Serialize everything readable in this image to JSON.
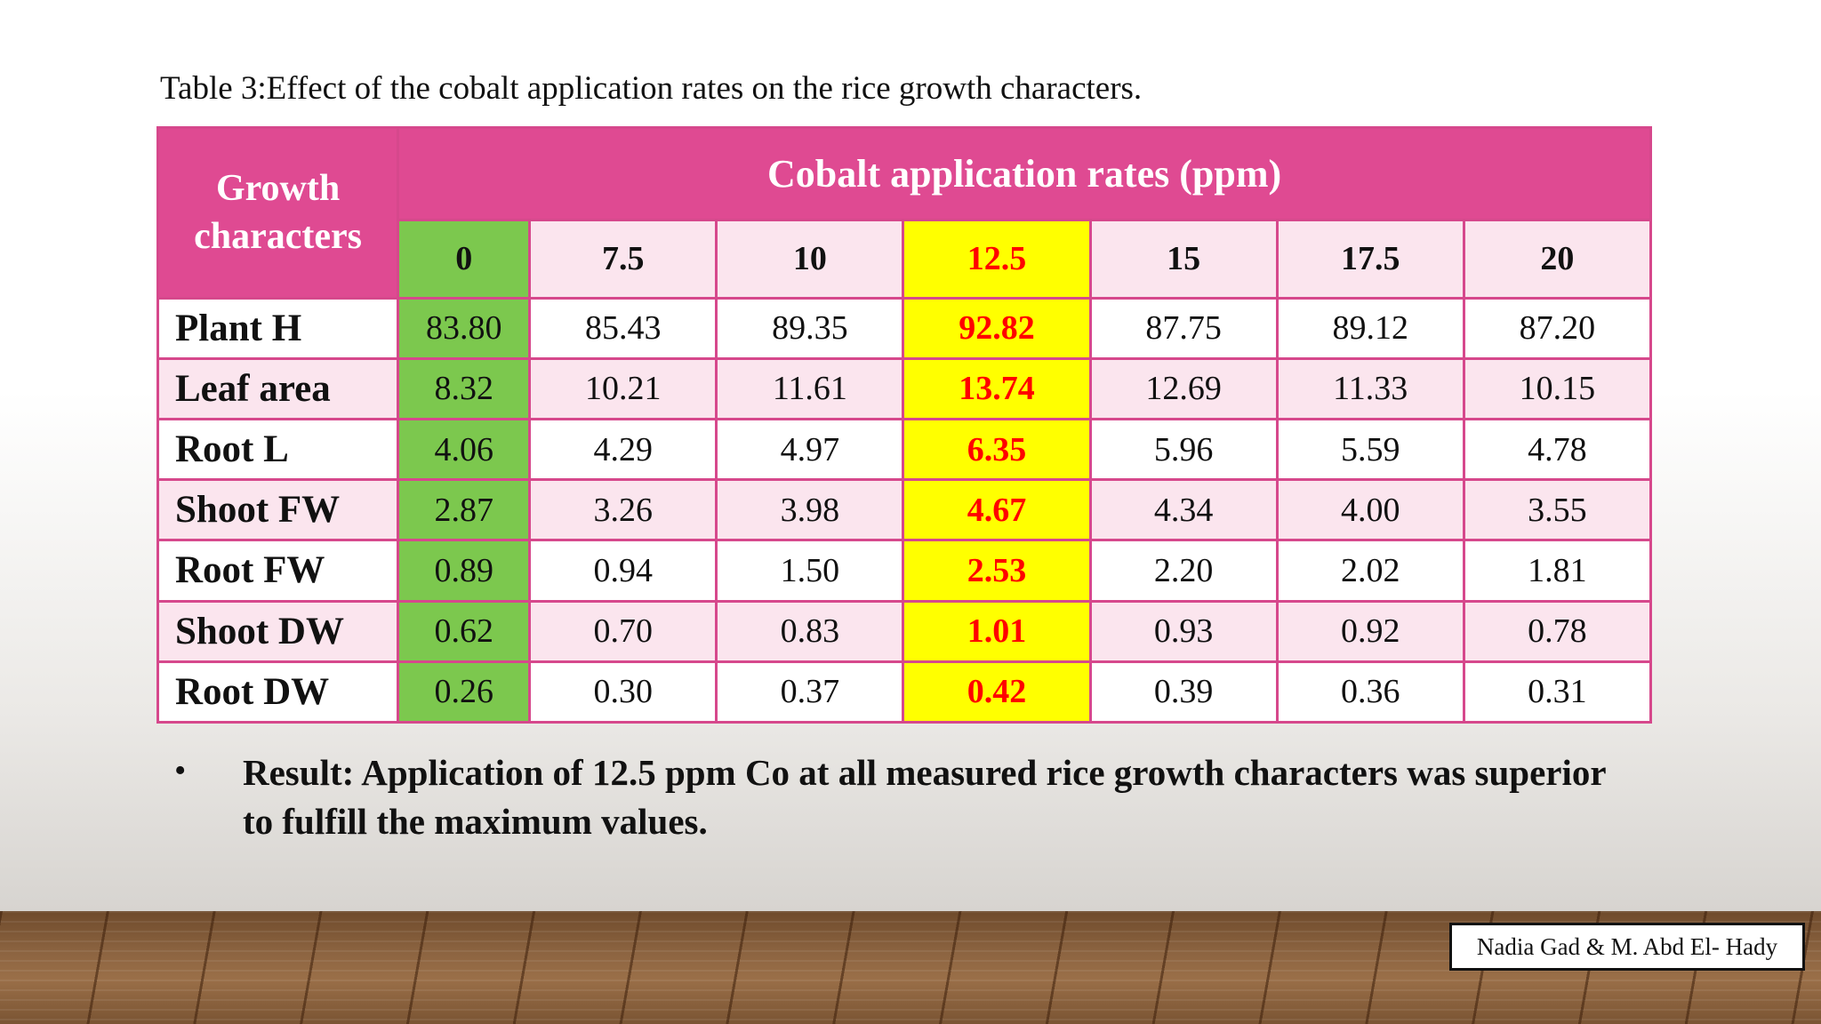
{
  "caption": "Table 3:Effect of the cobalt application rates on the rice growth characters.",
  "table": {
    "corner_label": "Growth characters",
    "rates_title": "Cobalt application rates (ppm)",
    "rates": [
      "0",
      "7.5",
      "10",
      "12.5",
      "15",
      "17.5",
      "20"
    ],
    "rows": [
      {
        "label": "Plant H",
        "values": [
          "83.80",
          "85.43",
          "89.35",
          "92.82",
          "87.75",
          "89.12",
          "87.20"
        ]
      },
      {
        "label": "Leaf area",
        "values": [
          "8.32",
          "10.21",
          "11.61",
          "13.74",
          "12.69",
          "11.33",
          "10.15"
        ]
      },
      {
        "label": "Root L",
        "values": [
          "4.06",
          "4.29",
          "4.97",
          "6.35",
          "5.96",
          "5.59",
          "4.78"
        ]
      },
      {
        "label": "Shoot FW",
        "values": [
          "2.87",
          "3.26",
          "3.98",
          "4.67",
          "4.34",
          "4.00",
          "3.55"
        ]
      },
      {
        "label": "Root FW",
        "values": [
          "0.89",
          "0.94",
          "1.50",
          "2.53",
          "2.20",
          "2.02",
          "1.81"
        ]
      },
      {
        "label": "Shoot DW",
        "values": [
          "0.62",
          "0.70",
          "0.83",
          "1.01",
          "0.93",
          "0.92",
          "0.78"
        ]
      },
      {
        "label": "Root DW",
        "values": [
          "0.26",
          "0.30",
          "0.37",
          "0.42",
          "0.39",
          "0.36",
          "0.31"
        ]
      }
    ]
  },
  "result": {
    "bullet": "•",
    "text": "Result: Application of 12.5 ppm Co at all measured rice growth characters was superior to fulfill the maximum values."
  },
  "credit": "Nadia Gad & M. Abd El- Hady",
  "colors": {
    "header_pink": "#df4a92",
    "light_pink": "#fbe5ee",
    "control_green": "#7cc84e",
    "highlight_yellow": "#ffff00",
    "highlight_text_red": "#ff0000"
  }
}
